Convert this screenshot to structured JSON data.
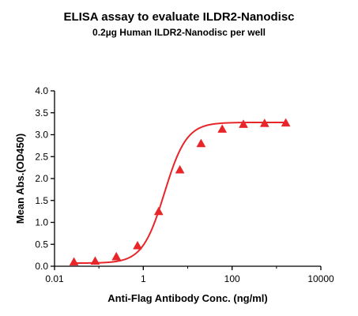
{
  "chart_data": {
    "type": "scatter",
    "title": "ELISA assay to evaluate ILDR2-Nanodisc",
    "subtitle": "0.2µg Human ILDR2-Nanodisc per well",
    "xlabel": "Anti-Flag Antibody Conc. (ng/ml)",
    "ylabel": "Mean Abs.(OD450)",
    "x_scale": "log",
    "xlim": [
      0.01,
      10000
    ],
    "ylim": [
      0.0,
      4.0
    ],
    "x_ticks": [
      0.01,
      1,
      100,
      10000
    ],
    "x_tick_labels": [
      "0.01",
      "1",
      "100",
      "10000"
    ],
    "y_ticks": [
      0.0,
      0.5,
      1.0,
      1.5,
      2.0,
      2.5,
      3.0,
      3.5,
      4.0
    ],
    "y_tick_labels": [
      "0.0",
      "0.5",
      "1.0",
      "1.5",
      "2.0",
      "2.5",
      "3.0",
      "3.5",
      "4.0"
    ],
    "grid": false,
    "color": "#e8262a",
    "marker": "triangle",
    "fit_curve": "4PL",
    "fit_params": {
      "bottom": 0.07,
      "top": 3.28,
      "ec50": 3.0,
      "hill": 1.75
    },
    "series": [
      {
        "x": [
          0.0274,
          0.0823,
          0.247,
          0.741,
          2.22,
          6.67,
          20.0,
          60.0,
          180.0,
          540.0,
          1620.0
        ],
        "y": [
          0.1,
          0.12,
          0.22,
          0.47,
          1.25,
          2.2,
          2.8,
          3.13,
          3.24,
          3.26,
          3.27
        ]
      }
    ]
  }
}
